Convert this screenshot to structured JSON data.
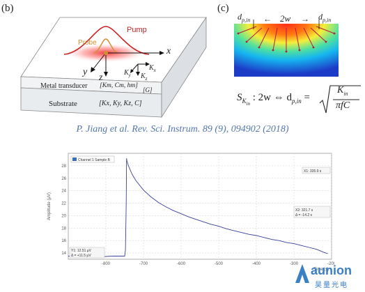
{
  "panel_b": {
    "label": "(b)",
    "pump": "Pump",
    "probe": "Probe",
    "axis_x": "x",
    "axis_y": "y",
    "axis_z": "z",
    "ky": "K",
    "ky_sub": "y",
    "kx": "K",
    "kx_sub": "x",
    "kz": "K",
    "kz_sub": "z",
    "layer1": "Metal transducer",
    "layer1_params": "[K",
    "layer1_params_full": "[Km, Cm, hm]",
    "layer1_g": "[G]",
    "layer2": "Substrate",
    "layer2_params": "[Kx, Ky, Kz, C]"
  },
  "panel_c": {
    "label": "(c)",
    "d_left": "d",
    "d_left_sub": "p,in",
    "width_label": "2w",
    "d_right": "d",
    "d_right_sub": "p,in",
    "formula_lhs": "S",
    "formula_lhs_sub": "K",
    "formula_lhs_subsub": "in",
    "formula_mid": ": 2w ⇔ d",
    "formula_mid_sub": "p,in",
    "formula_eq": "=",
    "formula_num": "K",
    "formula_num_sub": "in",
    "formula_den": "πfC"
  },
  "citation": "P. Jiang et al. Rev. Sci. Instrum. 89 (9), 094902 (2018)",
  "chart_data": {
    "type": "line",
    "legend": "Channel 1 Sample B",
    "ylabel": "Amplitude (µV)",
    "xlabel": "Time (s)",
    "xlim": [
      -900,
      -200
    ],
    "ylim": [
      13,
      30
    ],
    "x_ticks": [
      "-800",
      "-700",
      "-600",
      "-500",
      "-400",
      "-300",
      "-200"
    ],
    "x_tick_values": [
      -800,
      -700,
      -600,
      -500,
      -400,
      -300,
      -200
    ],
    "y_ticks": [
      "14",
      "16",
      "18",
      "20",
      "22",
      "24",
      "26",
      "28"
    ],
    "y_tick_values": [
      14,
      16,
      18,
      20,
      22,
      24,
      26,
      28
    ],
    "series": [
      {
        "x": [
          -900,
          -860,
          -820,
          -780,
          -760,
          -750,
          -748,
          -746,
          -745,
          -744,
          -740,
          -730,
          -720,
          -700,
          -680,
          -660,
          -640,
          -620,
          -600,
          -580,
          -560,
          -540,
          -520,
          -500,
          -480,
          -460,
          -440,
          -420,
          -400,
          -380,
          -360,
          -340,
          -320,
          -300,
          -280,
          -260,
          -240,
          -220,
          -210
        ],
        "y": [
          13.5,
          13.5,
          13.4,
          13.5,
          13.5,
          13.5,
          14.5,
          22.0,
          29.2,
          28.8,
          28.0,
          26.6,
          25.6,
          24.1,
          23.0,
          22.1,
          21.4,
          20.8,
          20.3,
          19.8,
          19.4,
          19.0,
          18.6,
          18.3,
          17.9,
          17.6,
          17.3,
          17.0,
          16.8,
          16.5,
          16.2,
          16.0,
          15.7,
          15.5,
          15.2,
          14.9,
          14.6,
          14.1,
          13.9
        ]
      }
    ],
    "cursor_x1": "X1: 335.9 s",
    "cursor_x2": "X2: 321.7 s",
    "cursor_dx": "Δ = -14.2 s",
    "cursor_y1": "Y1: 12.51 µV",
    "cursor_dy": "Δ = +11.5 µV"
  },
  "watermark": {
    "brand": "aunion",
    "chinese": "昊量光电"
  },
  "colors": {
    "citation": "#5577aa",
    "curve": "#3a3f9a",
    "pump": "#cc2222",
    "probe": "#d09030",
    "brand": "#3b7fc4"
  }
}
